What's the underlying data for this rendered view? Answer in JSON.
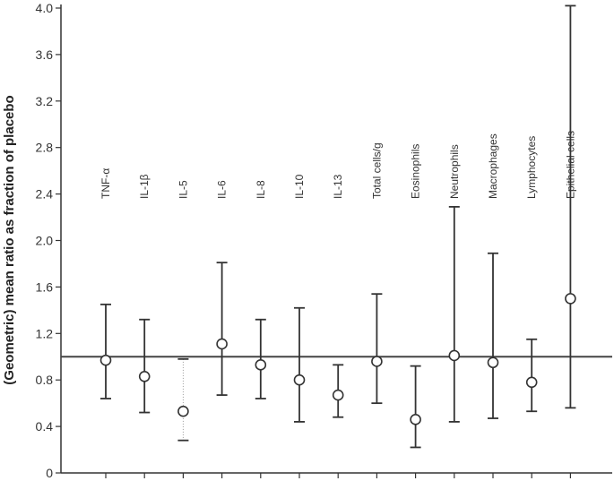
{
  "chart_data": {
    "type": "scatter",
    "title": "",
    "xlabel": "",
    "ylabel": "(Geometric) mean ratio as fraction of placebo",
    "ylim": [
      0,
      4.0
    ],
    "yticks": [
      "0",
      "0.4",
      "0.8",
      "1.2",
      "1.6",
      "2.0",
      "2.4",
      "2.8",
      "3.2",
      "3.6",
      "4.0"
    ],
    "ytick_values": [
      0,
      0.4,
      0.8,
      1.2,
      1.6,
      2.0,
      2.4,
      2.8,
      3.2,
      3.6,
      4.0
    ],
    "reference_line": 1.0,
    "grid": false,
    "categories": [
      "TNF-α",
      "IL-1β",
      "IL-5",
      "IL-6",
      "IL-8",
      "IL-10",
      "IL-13",
      "Total cells/g",
      "Eosinophils",
      "Neutrophils",
      "Macrophages",
      "Lymphocytes",
      "Epithelial cells"
    ],
    "values": [
      0.97,
      0.83,
      0.53,
      1.11,
      0.93,
      0.8,
      0.67,
      0.96,
      0.46,
      1.01,
      0.95,
      0.78,
      1.5
    ],
    "lower": [
      0.64,
      0.52,
      0.28,
      0.67,
      0.64,
      0.44,
      0.48,
      0.6,
      0.22,
      0.44,
      0.47,
      0.53,
      0.56
    ],
    "upper": [
      1.45,
      1.32,
      0.98,
      1.81,
      1.32,
      1.42,
      0.93,
      1.54,
      0.92,
      2.29,
      1.89,
      1.15,
      4.02
    ],
    "dotted_ci": [
      false,
      false,
      true,
      false,
      false,
      false,
      false,
      false,
      false,
      false,
      false,
      false,
      false
    ]
  }
}
